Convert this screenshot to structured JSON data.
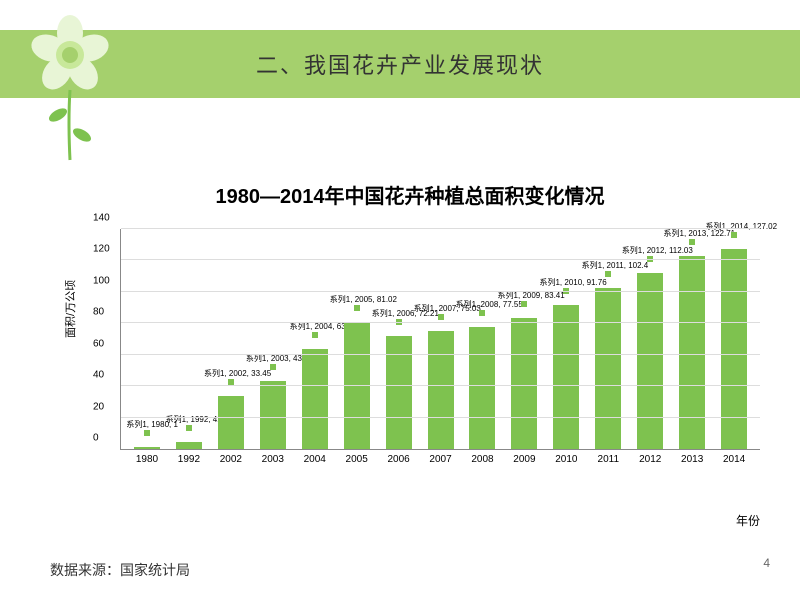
{
  "header": {
    "title": "二、我国花卉产业发展现状",
    "band_color": "#a5d06d"
  },
  "chart": {
    "type": "bar",
    "title": "1980—2014年中国花卉种植总面积变化情况",
    "y_label": "面积/万公顷",
    "x_label": "年份",
    "series_name": "系列1",
    "ylim_max": 140,
    "ytick_step": 20,
    "bar_color": "#7ec24f",
    "marker_color": "#7ec24f",
    "grid_color": "#dddddd",
    "axis_color": "#888888",
    "title_fontsize": 20,
    "categories": [
      "1980",
      "1992",
      "2002",
      "2003",
      "2004",
      "2005",
      "2006",
      "2007",
      "2008",
      "2009",
      "2010",
      "2011",
      "2012",
      "2013",
      "2014"
    ],
    "values": [
      1,
      4.5,
      33.45,
      43.01,
      63.6,
      81.02,
      72.21,
      75.03,
      77.55,
      83.41,
      91.76,
      102.4,
      112.03,
      122.71,
      127.02
    ],
    "labels": [
      "系列1, 1980, 1",
      "系列1, 1992, 4.5",
      "系列1, 2002, 33.45",
      "系列1, 2003, 43.01",
      "系列1, 2004, 63.6",
      "系列1, 2005, 81.02",
      "系列1, 2006, 72.21",
      "系列1, 2007, 75.03",
      "系列1, 2008, 77.55",
      "系列1, 2009, 83.41",
      "系列1, 2010, 91.76",
      "系列1, 2011, 102.4",
      "系列1, 2012, 112.03",
      "系列1, 2013, 122.71",
      "系列1, 2014, 127.02"
    ]
  },
  "footer": {
    "source": "数据来源：国家统计局",
    "page": "4"
  },
  "decoration": {
    "petal_color": "#e8f5d6",
    "center_outer": "#c8e89a",
    "center_inner": "#a5d06d",
    "stem_color": "#7ec24f",
    "leaf_color": "#7ec24f"
  }
}
